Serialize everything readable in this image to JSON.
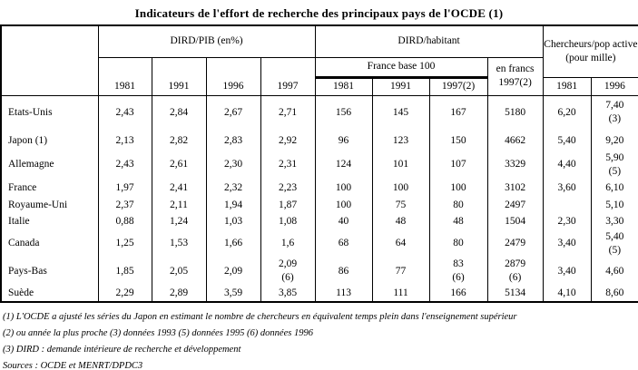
{
  "title": "Indicateurs de l'effort de recherche des principaux pays de l'OCDE (1)",
  "header": {
    "corner": "",
    "group_dird_pib": "DIRD/PIB (en%)",
    "group_dird_habitant": "DIRD/habitant",
    "group_chercheurs": "Chercheurs/pop active (pour mille)",
    "france_base_100": "France base 100",
    "en_francs": "en francs\n1997(2)",
    "years_pib": [
      "1981",
      "1991",
      "1996",
      "1997"
    ],
    "years_habitant": [
      "1981",
      "1991",
      "1997(2)"
    ],
    "years_chercheurs": [
      "1981",
      "1996"
    ]
  },
  "rows": [
    {
      "country": "Etats-Unis",
      "cells": [
        "2,43",
        "2,84",
        "2,67",
        "2,71",
        "156",
        "145",
        "167",
        "5180",
        "6,20",
        "7,40\n(3)"
      ]
    },
    {
      "country": "Japon (1)",
      "cells": [
        "2,13",
        "2,82",
        "2,83",
        "2,92",
        "96",
        "123",
        "150",
        "4662",
        "5,40",
        "9,20"
      ]
    },
    {
      "country": "Allemagne",
      "cells": [
        "2,43",
        "2,61",
        "2,30",
        "2,31",
        "124",
        "101",
        "107",
        "3329",
        "4,40",
        "5,90\n(5)"
      ]
    },
    {
      "country": "France",
      "cells": [
        "1,97",
        "2,41",
        "2,32",
        "2,23",
        "100",
        "100",
        "100",
        "3102",
        "3,60",
        "6,10"
      ]
    },
    {
      "country": "Royaume-Uni",
      "cells": [
        "2,37",
        "2,11",
        "1,94",
        "1,87",
        "100",
        "75",
        "80",
        "2497",
        "",
        "5,10"
      ]
    },
    {
      "country": "Italie",
      "cells": [
        "0,88",
        "1,24",
        "1,03",
        "1,08",
        "40",
        "48",
        "48",
        "1504",
        "2,30",
        "3,30"
      ]
    },
    {
      "country": "Canada",
      "cells": [
        "1,25",
        "1,53",
        "1,66",
        "1,6",
        "68",
        "64",
        "80",
        "2479",
        "3,40",
        "5,40\n(5)"
      ]
    },
    {
      "country": "Pays-Bas",
      "cells": [
        "1,85",
        "2,05",
        "2,09",
        "2,09\n(6)",
        "86",
        "77",
        "83\n(6)",
        "2879\n(6)",
        "3,40",
        "4,60"
      ]
    },
    {
      "country": "Suède",
      "cells": [
        "2,29",
        "2,89",
        "3,59",
        "3,85",
        "113",
        "111",
        "166",
        "5134",
        "4,10",
        "8,60"
      ]
    }
  ],
  "notes": [
    "(1) L'OCDE a ajusté les séries du Japon en estimant le nombre de chercheurs en équivalent temps plein dans l'enseignement supérieur",
    "(2) ou année la plus proche (3) données 1993 (5) données 1995 (6) données 1996",
    "(3) DIRD : demande intérieure de recherche et développement",
    "Sources : OCDE et MENRT/DPDC3"
  ]
}
